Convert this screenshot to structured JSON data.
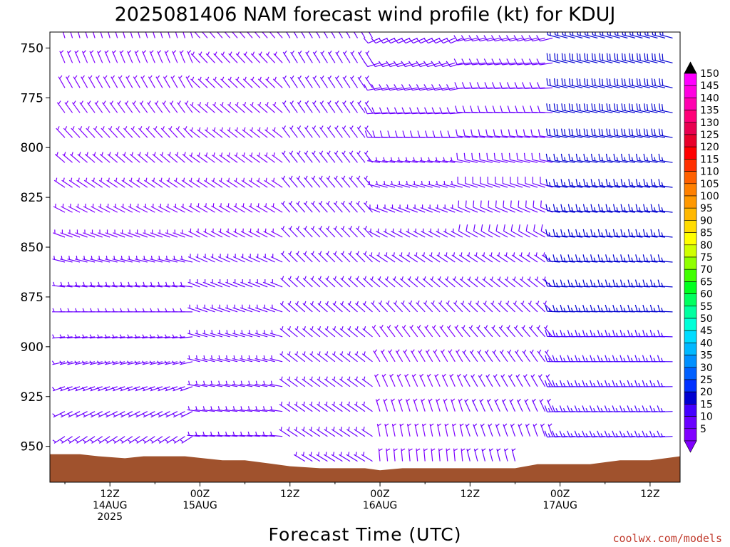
{
  "title": "2025081406 NAM forecast wind profile (kt) for KDUJ",
  "credit": "coolwx.com/models",
  "chart_data": {
    "type": "wind-barb-profile",
    "xlabel": "Forecast Time (UTC)",
    "ylabel": "",
    "x_range_hours": [
      -2,
      82
    ],
    "y_range_hpa": [
      742,
      968
    ],
    "y_ticks": [
      750,
      775,
      800,
      825,
      850,
      875,
      900,
      925,
      950
    ],
    "x_ticks": [
      {
        "hour": 6,
        "line1": "12Z",
        "line2": "14AUG",
        "line3": "2025"
      },
      {
        "hour": 18,
        "line1": "00Z",
        "line2": "15AUG",
        "line3": ""
      },
      {
        "hour": 30,
        "line1": "12Z",
        "line2": "",
        "line3": ""
      },
      {
        "hour": 42,
        "line1": "00Z",
        "line2": "16AUG",
        "line3": ""
      },
      {
        "hour": 54,
        "line1": "12Z",
        "line2": "",
        "line3": ""
      },
      {
        "hour": 66,
        "line1": "00Z",
        "line2": "17AUG",
        "line3": ""
      },
      {
        "hour": 78,
        "line1": "12Z",
        "line2": "",
        "line3": ""
      }
    ],
    "surface_pressure_hpa": [
      [
        -2,
        954
      ],
      [
        2,
        954
      ],
      [
        4.5,
        955
      ],
      [
        8,
        956
      ],
      [
        10.5,
        955
      ],
      [
        16,
        955
      ],
      [
        21,
        957
      ],
      [
        24,
        957
      ],
      [
        30,
        960
      ],
      [
        34,
        961
      ],
      [
        40,
        961
      ],
      [
        42,
        962
      ],
      [
        45,
        961
      ],
      [
        50,
        961
      ],
      [
        57,
        961
      ],
      [
        60,
        961
      ],
      [
        63,
        959
      ],
      [
        70,
        959
      ],
      [
        74,
        957
      ],
      [
        78,
        957
      ],
      [
        82,
        955
      ]
    ],
    "terrain_color": "#a0522d",
    "colorbar": {
      "min": 5,
      "max": 150,
      "step": 5,
      "labels": [
        150,
        145,
        140,
        135,
        130,
        125,
        120,
        115,
        110,
        105,
        100,
        95,
        90,
        85,
        80,
        75,
        70,
        65,
        60,
        55,
        50,
        45,
        40,
        35,
        30,
        25,
        20,
        15,
        10,
        5
      ],
      "colors": {
        "5": "#8000ff",
        "10": "#6a00ff",
        "15": "#4400ff",
        "20": "#0000d0",
        "25": "#0030ff",
        "30": "#0060ff",
        "35": "#0090ff",
        "40": "#00b8ff",
        "45": "#00dcff",
        "50": "#00ffd8",
        "55": "#00ffa0",
        "60": "#00ff60",
        "65": "#00ff20",
        "70": "#40ff00",
        "75": "#90ff00",
        "80": "#d0ff00",
        "85": "#ffff00",
        "90": "#ffdc00",
        "95": "#ffb800",
        "100": "#ff9800",
        "105": "#ff8000",
        "110": "#ff6000",
        "115": "#ff3000",
        "120": "#ff0000",
        "125": "#e8002a",
        "130": "#e80050",
        "135": "#ff0078",
        "140": "#ff00b0",
        "145": "#ff00e0",
        "150": "#ff00ff"
      }
    },
    "barb_grid": {
      "hours_start": 0,
      "hours_end": 81,
      "hours_step": 1,
      "levels_start": 745,
      "levels_end": 960,
      "levels_step": 12.5
    },
    "wind_regimes": [
      {
        "from_hour": 0,
        "to_hour": 18,
        "low_dir": 225,
        "low_spd": 10,
        "high_dir": 345,
        "high_spd": 5
      },
      {
        "from_hour": 18,
        "to_hour": 30,
        "low_dir": 270,
        "low_spd": 10,
        "high_dir": 320,
        "high_spd": 5
      },
      {
        "from_hour": 30,
        "to_hour": 42,
        "low_dir": 300,
        "low_spd": 8,
        "high_dir": 330,
        "high_spd": 8
      },
      {
        "from_hour": 42,
        "to_hour": 54,
        "low_dir": 0,
        "low_spd": 5,
        "high_dir": 245,
        "high_spd": 12
      },
      {
        "from_hour": 54,
        "to_hour": 66,
        "low_dir": 350,
        "low_spd": 8,
        "high_dir": 255,
        "high_spd": 12
      },
      {
        "from_hour": 66,
        "to_hour": 82,
        "low_dir": 265,
        "low_spd": 15,
        "high_dir": 285,
        "high_spd": 22
      }
    ]
  }
}
